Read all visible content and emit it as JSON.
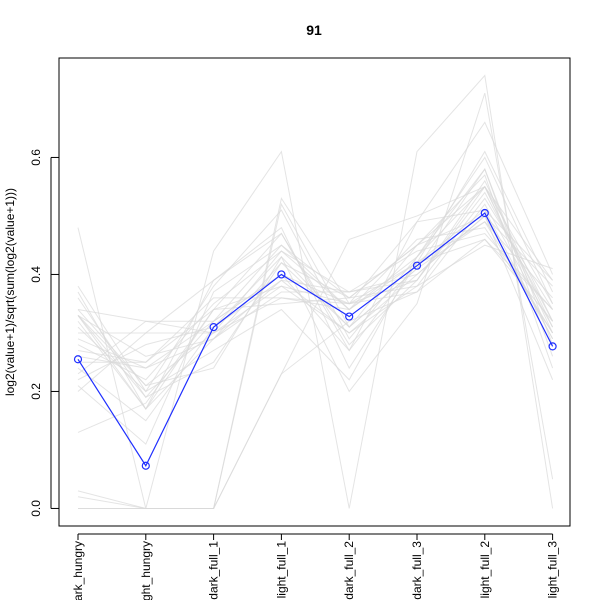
{
  "chart_data": {
    "type": "line",
    "title": "91",
    "xlabel": "",
    "ylabel": "log2(value+1)/sqrt(sum(log2(value+1)))",
    "categories": [
      "dark_hungry",
      "light_hungry",
      "dark_full_1",
      "light_full_1",
      "dark_full_2",
      "dark_full_3",
      "light_full_2",
      "light_full_3"
    ],
    "x_tick_labels_visible": [
      "ark_hungry",
      "ght_hungry",
      "dark_full_1",
      "light_full_1",
      "dark_full_2",
      "dark_full_3",
      "light_full_2",
      "light_full_3"
    ],
    "ylim": [
      -0.03,
      0.77
    ],
    "yticks": [
      0.0,
      0.2,
      0.4,
      0.6
    ],
    "ytick_labels": [
      "0.0",
      "0.2",
      "0.4",
      "0.6"
    ],
    "grid": false,
    "legend": "none",
    "colors": {
      "highlight": "#1f2fff",
      "background_lines": "#d8d8d8",
      "axes": "#000000"
    },
    "highlight_series": {
      "values": [
        0.255,
        0.073,
        0.31,
        0.4,
        0.328,
        0.415,
        0.505,
        0.277
      ]
    },
    "background_series": [
      [
        0.48,
        0.0,
        0.44,
        0.61,
        0.0,
        0.61,
        0.74,
        0.0
      ],
      [
        0.02,
        0.0,
        0.0,
        0.23,
        0.46,
        0.5,
        0.55,
        0.39
      ],
      [
        0.03,
        0.0,
        0.0,
        0.23,
        0.32,
        0.37,
        0.46,
        0.32
      ],
      [
        0.0,
        0.0,
        0.0,
        0.52,
        0.31,
        0.45,
        0.55,
        0.35
      ],
      [
        0.0,
        0.0,
        0.0,
        0.53,
        0.35,
        0.49,
        0.66,
        0.4
      ],
      [
        0.38,
        0.2,
        0.38,
        0.51,
        0.29,
        0.43,
        0.55,
        0.3
      ],
      [
        0.33,
        0.21,
        0.24,
        0.43,
        0.2,
        0.35,
        0.71,
        0.05
      ],
      [
        0.37,
        0.17,
        0.39,
        0.48,
        0.24,
        0.42,
        0.61,
        0.37
      ],
      [
        0.34,
        0.32,
        0.32,
        0.45,
        0.36,
        0.45,
        0.5,
        0.38
      ],
      [
        0.33,
        0.17,
        0.29,
        0.37,
        0.37,
        0.4,
        0.5,
        0.22
      ],
      [
        0.31,
        0.2,
        0.27,
        0.34,
        0.22,
        0.43,
        0.58,
        0.28
      ],
      [
        0.3,
        0.3,
        0.39,
        0.47,
        0.27,
        0.49,
        0.51,
        0.39
      ],
      [
        0.13,
        0.18,
        0.34,
        0.35,
        0.36,
        0.38,
        0.53,
        0.34
      ],
      [
        0.28,
        0.22,
        0.35,
        0.44,
        0.34,
        0.46,
        0.48,
        0.3
      ],
      [
        0.26,
        0.24,
        0.29,
        0.42,
        0.31,
        0.41,
        0.58,
        0.26
      ],
      [
        0.2,
        0.3,
        0.3,
        0.36,
        0.35,
        0.39,
        0.55,
        0.31
      ],
      [
        0.33,
        0.26,
        0.29,
        0.39,
        0.3,
        0.38,
        0.45,
        0.41
      ],
      [
        0.21,
        0.11,
        0.37,
        0.45,
        0.34,
        0.42,
        0.49,
        0.3
      ],
      [
        0.34,
        0.21,
        0.3,
        0.44,
        0.37,
        0.39,
        0.54,
        0.32
      ],
      [
        0.22,
        0.28,
        0.31,
        0.39,
        0.37,
        0.44,
        0.47,
        0.34
      ],
      [
        0.36,
        0.19,
        0.32,
        0.4,
        0.27,
        0.42,
        0.51,
        0.29
      ],
      [
        0.23,
        0.32,
        0.3,
        0.38,
        0.3,
        0.4,
        0.5,
        0.29
      ],
      [
        0.25,
        0.25,
        0.34,
        0.47,
        0.28,
        0.39,
        0.56,
        0.32
      ],
      [
        0.32,
        0.17,
        0.34,
        0.38,
        0.35,
        0.42,
        0.46,
        0.34
      ],
      [
        0.33,
        0.19,
        0.25,
        0.42,
        0.36,
        0.45,
        0.57,
        0.24
      ],
      [
        0.29,
        0.24,
        0.32,
        0.4,
        0.35,
        0.37,
        0.52,
        0.31
      ],
      [
        0.27,
        0.25,
        0.36,
        0.36,
        0.34,
        0.43,
        0.6,
        0.35
      ],
      [
        0.24,
        0.15,
        0.31,
        0.43,
        0.31,
        0.41,
        0.49,
        0.36
      ]
    ]
  }
}
